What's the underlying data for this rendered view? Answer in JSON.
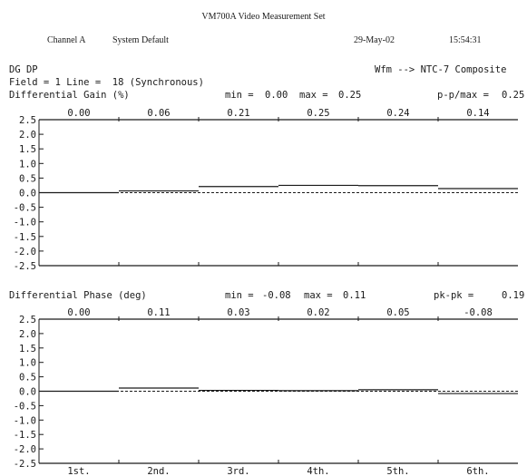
{
  "header": {
    "title": "VM700A Video Measurement Set",
    "channel": "Channel A",
    "setup": "System Default",
    "date": "29-May-02",
    "time": "15:54:31"
  },
  "info": {
    "measurement": "DG DP",
    "field_line": "Field = 1 Line =  18 (Synchronous)",
    "signal": "Wfm --> NTC-7 Composite"
  },
  "stats": {
    "dg": {
      "label": "Differential Gain (%)",
      "min_label": "min =",
      "min": "0.00",
      "max_label": "max =",
      "max": "0.25",
      "spread_label": "p-p/max =",
      "spread": "0.25"
    },
    "dp": {
      "label": "Differential Phase (deg)",
      "min_label": "min =",
      "min": "-0.08",
      "max_label": "max =",
      "max": "0.11",
      "spread_label": "pk-pk =",
      "spread": "0.19"
    }
  },
  "chart_data": [
    {
      "type": "line",
      "title": "Differential Gain (%)",
      "categories": [
        "1st.",
        "2nd.",
        "3rd.",
        "4th.",
        "5th.",
        "6th."
      ],
      "values": [
        0.0,
        0.06,
        0.21,
        0.25,
        0.24,
        0.14
      ],
      "value_labels": [
        "0.00",
        "0.06",
        "0.21",
        "0.25",
        "0.24",
        "0.14"
      ],
      "ylim": [
        -2.5,
        2.5
      ],
      "yticks": [
        "2.5",
        "2.0",
        "1.5",
        "1.0",
        "0.5",
        "0.0",
        "-0.5",
        "-1.0",
        "-1.5",
        "-2.0",
        "-2.5"
      ],
      "step_plot": true,
      "zero_line_dashed": true
    },
    {
      "type": "line",
      "title": "Differential Phase (deg)",
      "categories": [
        "1st.",
        "2nd.",
        "3rd.",
        "4th.",
        "5th.",
        "6th."
      ],
      "values": [
        0.0,
        0.11,
        0.03,
        0.02,
        0.05,
        -0.08
      ],
      "value_labels": [
        "0.00",
        "0.11",
        "0.03",
        "0.02",
        "0.05",
        "-0.08"
      ],
      "ylim": [
        -2.5,
        2.5
      ],
      "yticks": [
        "2.5",
        "2.0",
        "1.5",
        "1.0",
        "0.5",
        "0.0",
        "-0.5",
        "-1.0",
        "-1.5",
        "-2.0",
        "-2.5"
      ],
      "xtick_labels": [
        "1st.",
        "2nd.",
        "3rd.",
        "4th.",
        "5th.",
        "6th."
      ],
      "step_plot": true,
      "zero_line_dashed": true
    }
  ],
  "colors": {
    "ink": "#1a1a1a",
    "background": "#ffffff"
  }
}
